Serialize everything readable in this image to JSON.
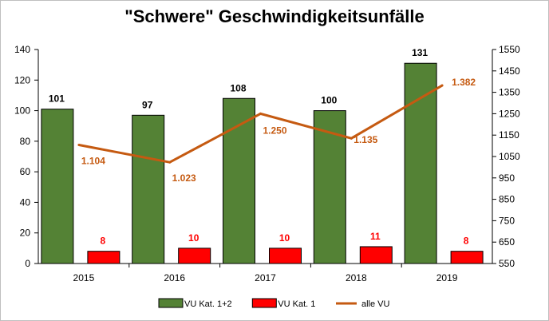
{
  "chart_data": {
    "type": "bar",
    "title": "\"Schwere\" Geschwindigkeitsunfälle",
    "categories": [
      "2015",
      "2016",
      "2017",
      "2018",
      "2019"
    ],
    "series": [
      {
        "name": "VU Kat. 1+2",
        "kind": "bar",
        "axis": "left",
        "color": "#548235",
        "values": [
          101,
          97,
          108,
          100,
          131
        ],
        "labels": [
          "101",
          "97",
          "108",
          "100",
          "131"
        ],
        "label_color": "#000000"
      },
      {
        "name": "VU Kat. 1",
        "kind": "bar",
        "axis": "left",
        "color": "#ff0000",
        "values": [
          8,
          10,
          10,
          11,
          8
        ],
        "labels": [
          "8",
          "10",
          "10",
          "11",
          "8"
        ],
        "label_color": "#ff0000"
      },
      {
        "name": "alle VU",
        "kind": "line",
        "axis": "right",
        "color": "#c55a11",
        "values": [
          1104,
          1023,
          1250,
          1135,
          1382
        ],
        "labels": [
          "1.104",
          "1.023",
          "1.250",
          "1.135",
          "1.382"
        ],
        "label_color": "#c55a11"
      }
    ],
    "y_left": {
      "min": 0,
      "max": 140,
      "ticks": [
        "0",
        "20",
        "40",
        "60",
        "80",
        "100",
        "120",
        "140"
      ]
    },
    "y_right": {
      "min": 550,
      "max": 1550,
      "ticks": [
        "550",
        "650",
        "750",
        "850",
        "950",
        "1050",
        "1150",
        "1250",
        "1350",
        "1450",
        "1550"
      ]
    },
    "grid": false,
    "legend": "bottom"
  }
}
